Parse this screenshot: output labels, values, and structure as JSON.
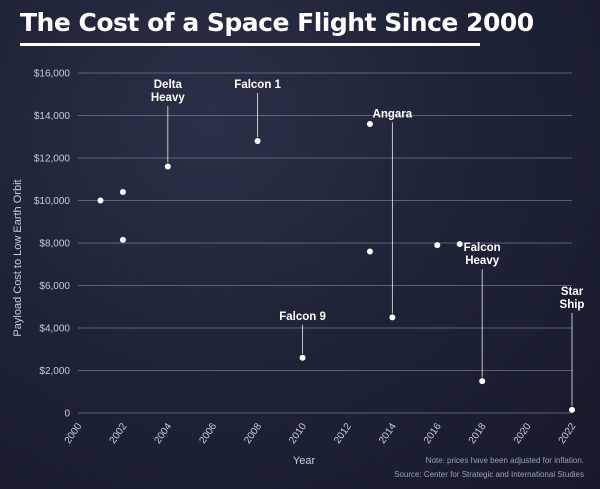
{
  "chart_data": {
    "type": "scatter",
    "title": "The Cost of a Space Flight Since 2000",
    "xlabel": "Year",
    "ylabel": "Payload Cost to Low Earth Orbit",
    "xlim": [
      2000,
      2022
    ],
    "ylim": [
      0,
      16000
    ],
    "x_ticks": [
      "2000",
      "2002",
      "2004",
      "2006",
      "2008",
      "2010",
      "2012",
      "2014",
      "2016",
      "2018",
      "2020",
      "2022"
    ],
    "y_ticks": [
      "0",
      "$2,000",
      "$4,000",
      "$6,000",
      "$8,000",
      "$10,000",
      "$12,000",
      "$14,000",
      "$16,000"
    ],
    "grid": "horizontal",
    "points": [
      {
        "x": 2001,
        "y": 10000,
        "label": ""
      },
      {
        "x": 2002,
        "y": 10400,
        "label": ""
      },
      {
        "x": 2002,
        "y": 8150,
        "label": ""
      },
      {
        "x": 2004,
        "y": 11600,
        "label": "Delta\nHeavy"
      },
      {
        "x": 2008,
        "y": 12800,
        "label": "Falcon 1"
      },
      {
        "x": 2010,
        "y": 2600,
        "label": "Falcon 9"
      },
      {
        "x": 2013,
        "y": 13600,
        "label": ""
      },
      {
        "x": 2013,
        "y": 7600,
        "label": ""
      },
      {
        "x": 2014,
        "y": 4500,
        "label": "Angara"
      },
      {
        "x": 2016,
        "y": 7900,
        "label": ""
      },
      {
        "x": 2017,
        "y": 7950,
        "label": ""
      },
      {
        "x": 2018,
        "y": 1500,
        "label": "Falcon\nHeavy"
      },
      {
        "x": 2022,
        "y": 150,
        "label": "Star\nShip"
      }
    ],
    "annotations": [
      "Note: prices have been adjusted for inflation.",
      "Source: Center for Strategic and International Studies"
    ]
  },
  "colors": {
    "point": "#ffffff",
    "grid": "#8c91a6",
    "axis_text": "#c9ccd8"
  }
}
